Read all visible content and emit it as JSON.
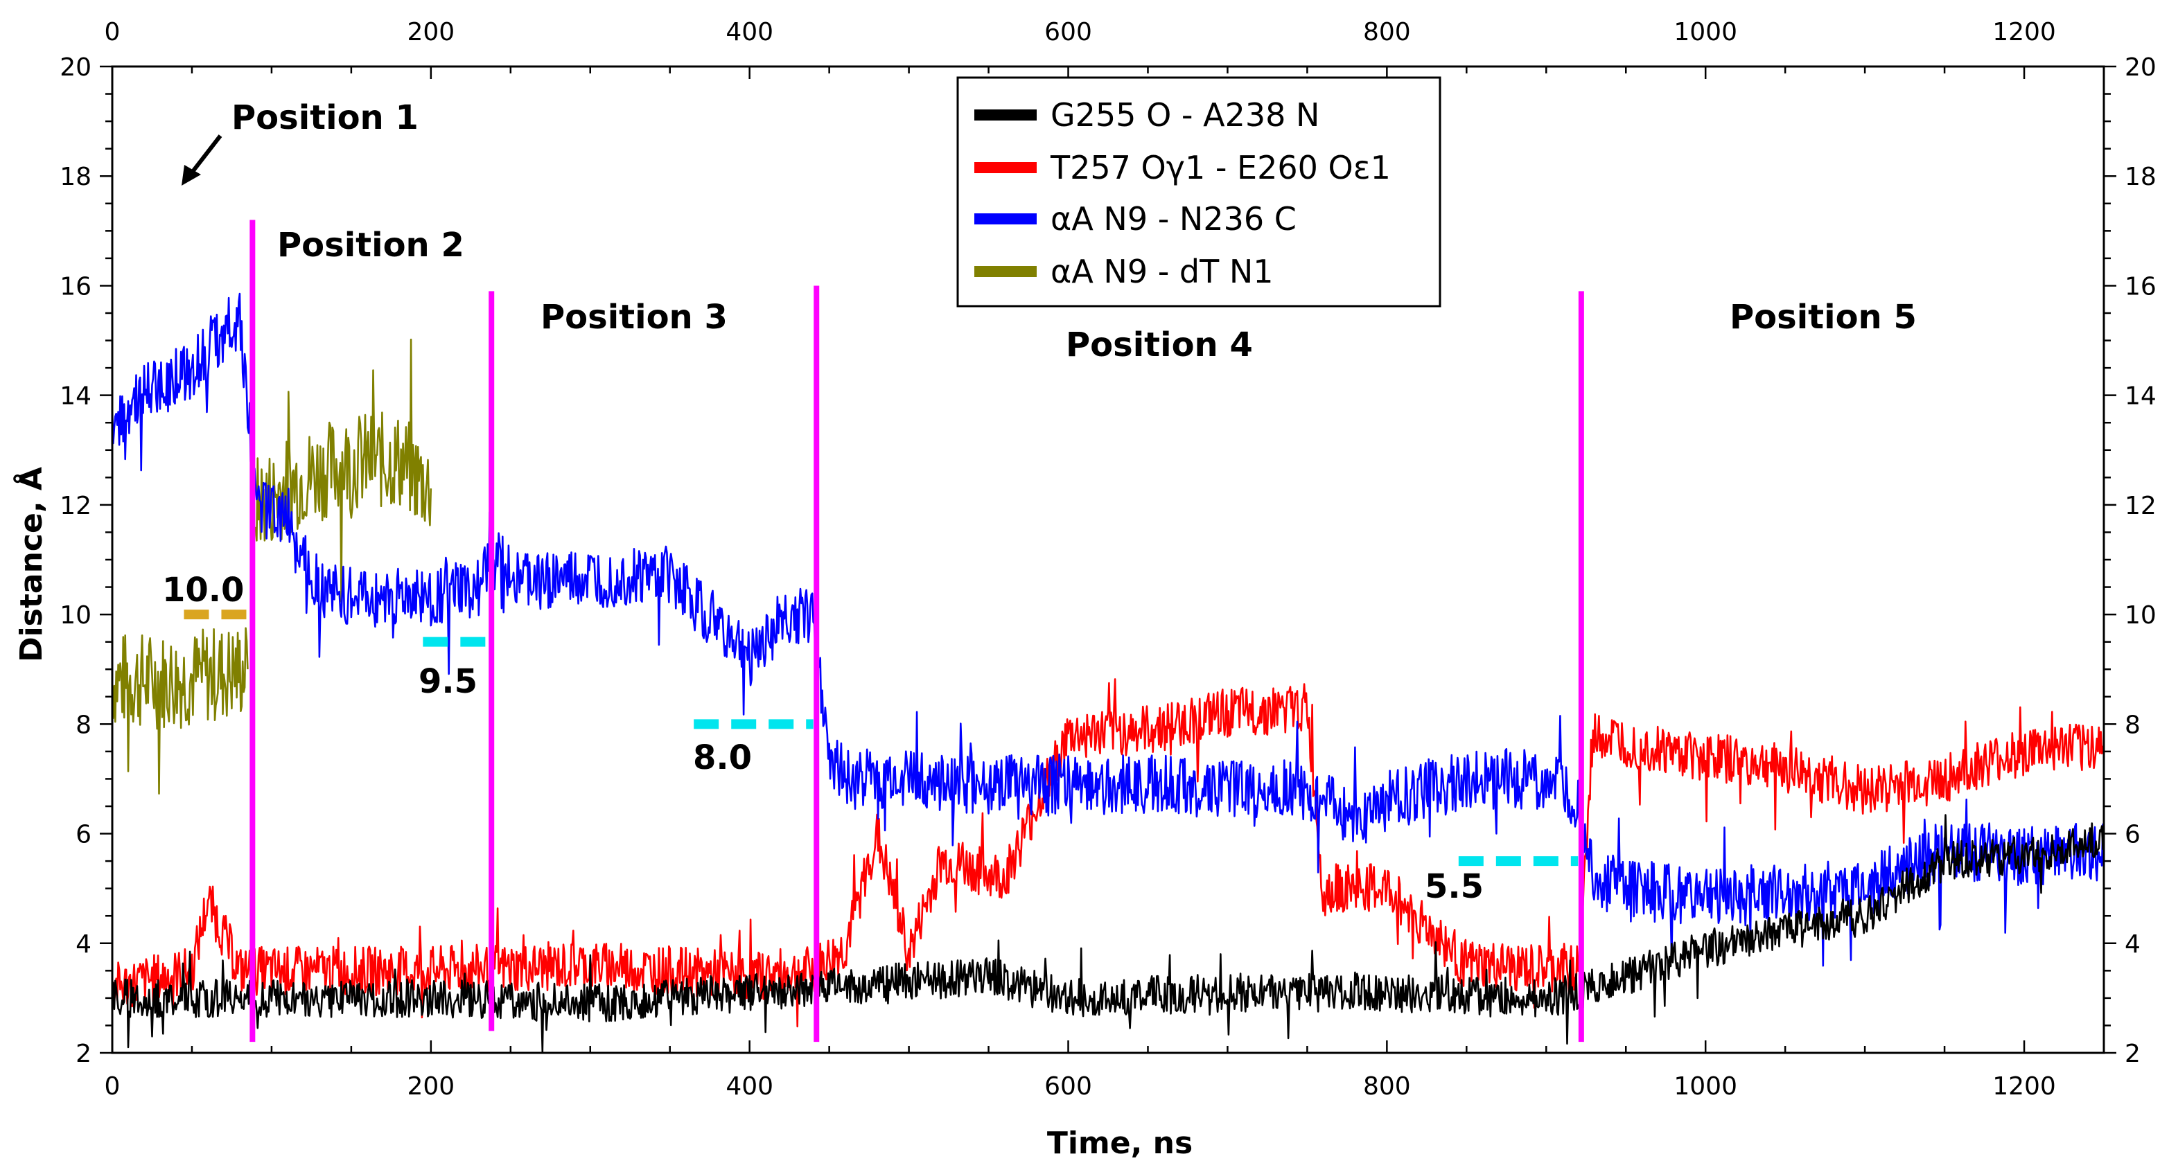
{
  "chart_data": {
    "type": "line",
    "xlabel": "Time, ns",
    "ylabel": "Distance, Å",
    "xlim": [
      0,
      1250
    ],
    "ylim": [
      2,
      20
    ],
    "x_ticks": [
      0,
      200,
      400,
      600,
      800,
      1000,
      1200
    ],
    "y_ticks": [
      2,
      4,
      6,
      8,
      10,
      12,
      14,
      16,
      18,
      20
    ],
    "x_tick_labels": [
      "0",
      "200",
      "400",
      "600",
      "800",
      "1000",
      "1200"
    ],
    "y_tick_labels": [
      "2",
      "4",
      "6",
      "8",
      "10",
      "12",
      "14",
      "16",
      "18",
      "20"
    ],
    "legend": [
      {
        "label": "G255 O - A238 N",
        "color": "#000000"
      },
      {
        "label": "T257 Oγ1 - E260 Oε1",
        "color": "#ff0000"
      },
      {
        "label": "αA N9 - N236 C",
        "color": "#0000ff"
      },
      {
        "label": "αA N9 - dT N1",
        "color": "#808000"
      }
    ],
    "series": [
      {
        "name": "G255 O - A238 N",
        "color": "#000000",
        "segments": [
          {
            "x": [
              0,
              100,
              200,
              300,
              400,
              500,
              550,
              600,
              700,
              800,
              900,
              920,
              950,
              1000,
              1050,
              1100,
              1150,
              1200,
              1250
            ],
            "y": [
              3.0,
              3.0,
              3.0,
              2.9,
              3.1,
              3.3,
              3.4,
              3.0,
              3.1,
              3.1,
              3.0,
              3.1,
              3.4,
              3.9,
              4.2,
              4.5,
              5.5,
              5.6,
              5.9
            ]
          }
        ]
      },
      {
        "name": "T257 Oγ1 - E260 Oε1",
        "color": "#ff0000",
        "segments": [
          {
            "x": [
              0,
              50,
              60,
              80,
              100,
              200,
              300,
              400,
              440,
              460,
              480,
              500,
              520,
              560,
              600,
              650,
              700,
              750,
              760,
              800,
              850,
              900,
              920,
              930,
              980,
              1050,
              1100,
              1150,
              1200,
              1250
            ],
            "y": [
              3.2,
              3.5,
              4.8,
              3.5,
              3.5,
              3.5,
              3.6,
              3.4,
              3.5,
              3.9,
              6.0,
              3.8,
              5.5,
              5.2,
              7.8,
              7.9,
              8.2,
              8.3,
              5.0,
              5.0,
              3.6,
              3.5,
              3.6,
              7.8,
              7.5,
              7.2,
              6.8,
              7.0,
              7.5,
              7.6
            ]
          }
        ]
      },
      {
        "name": "αA N9 - N236 C",
        "color": "#0000ff",
        "segments": [
          {
            "x": [
              0,
              20,
              50,
              80,
              90,
              110,
              130,
              150,
              200,
              230,
              240,
              260,
              300,
              350,
              400,
              420,
              440,
              450,
              460,
              500,
              550,
              600,
              650,
              700,
              750,
              780,
              800,
              850,
              900,
              920,
              930,
              950,
              1000,
              1050,
              1100,
              1150,
              1200,
              1250
            ],
            "y": [
              13.5,
              14.0,
              14.5,
              15.5,
              12.0,
              11.8,
              10.5,
              10.3,
              10.3,
              10.5,
              11.0,
              10.6,
              10.6,
              10.7,
              9.2,
              9.9,
              10.0,
              7.5,
              7.0,
              7.0,
              6.9,
              6.9,
              6.9,
              6.8,
              6.8,
              6.2,
              6.6,
              7.0,
              7.0,
              6.5,
              5.2,
              5.0,
              4.8,
              4.9,
              5.0,
              5.7,
              5.6,
              5.7
            ]
          }
        ]
      },
      {
        "name": "αA N9 - dT N1",
        "color": "#808000",
        "segments": [
          {
            "x": [
              0,
              40,
              85
            ],
            "y": [
              8.8,
              8.8,
              9.0
            ]
          },
          {
            "x": [
              90,
              120,
              150,
              180,
              200
            ],
            "y": [
              12.0,
              12.5,
              12.8,
              12.8,
              12.3
            ]
          }
        ]
      }
    ],
    "vertical_lines": [
      {
        "x": 88,
        "y_top": 17.2,
        "y_bottom": 2.2
      },
      {
        "x": 238,
        "y_top": 15.9,
        "y_bottom": 2.4
      },
      {
        "x": 442,
        "y_top": 16.0,
        "y_bottom": 2.2
      },
      {
        "x": 922,
        "y_top": 15.9,
        "y_bottom": 2.2
      }
    ],
    "reference_lines": [
      {
        "label": "10.0",
        "y": 10.0,
        "x_start": 45,
        "x_end": 85,
        "color": "#daa520"
      },
      {
        "label": "9.5",
        "y": 9.5,
        "x_start": 195,
        "x_end": 235,
        "color": "#00e5ee"
      },
      {
        "label": "8.0",
        "y": 8.0,
        "x_start": 365,
        "x_end": 440,
        "color": "#00e5ee"
      },
      {
        "label": "5.5",
        "y": 5.5,
        "x_start": 845,
        "x_end": 920,
        "color": "#00e5ee"
      }
    ],
    "annotations": [
      "Position 1",
      "Position 2",
      "Position 3",
      "Position 4",
      "Position 5"
    ]
  },
  "colors": {
    "vertical_line": "#ff00ff",
    "axis": "#000000",
    "background": "#ffffff"
  }
}
